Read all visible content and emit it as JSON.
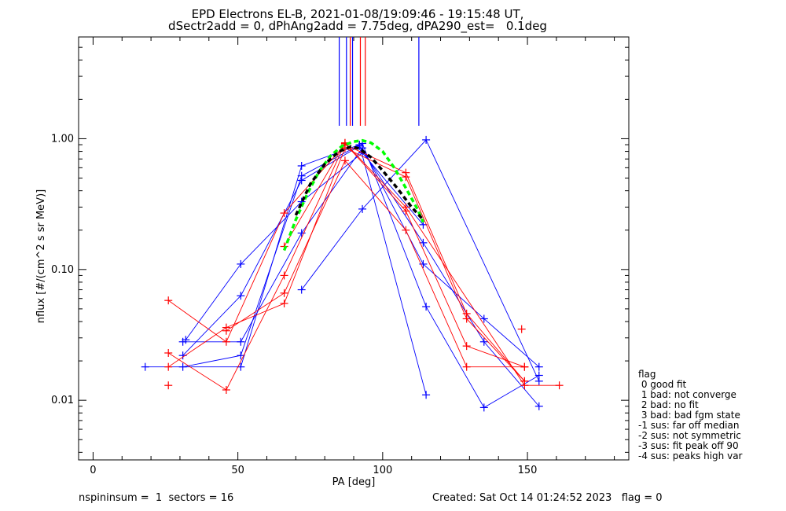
{
  "title": {
    "line1": "EPD Electrons EL-B, 2021-01-08/19:09:46 - 19:15:48 UT,",
    "line2": "dSectr2add = 0, dPhAng2add = 7.75deg, dPA290_est=   0.1deg"
  },
  "footer": {
    "left": "nspininsum =  1  sectors = 16",
    "right": "Created: Sat Oct 14 01:24:52 2023   flag = 0"
  },
  "flag_legend": {
    "title": "flag",
    "items": [
      " 0 good fit",
      " 1 bad: not converge",
      " 2 bad: no fit",
      " 3 bad: bad fgm state",
      "-1 sus: far off median",
      "-2 sus: not symmetric",
      "-3 sus: fit peak off 90",
      "-4 sus: peaks high var"
    ]
  },
  "colors": {
    "blue": "#0000ff",
    "red": "#ff0000",
    "green_fit": "#00ff00",
    "black_fit": "#000000"
  },
  "chart_data": {
    "type": "line",
    "xlabel": "PA [deg]",
    "ylabel": "nflux [#/(cm^2 s sr MeV)]",
    "xlim": [
      -5,
      185
    ],
    "ylim": [
      0.0035,
      6.0
    ],
    "yscale": "log",
    "x_ticks": [
      0,
      50,
      100,
      150
    ],
    "y_ticks": [
      0.01,
      0.1,
      1.0
    ],
    "y_tick_labels": [
      "0.01",
      "0.10",
      "1.00"
    ],
    "grid": false,
    "peak_markers": [
      {
        "x": 85.0,
        "color": "blue"
      },
      {
        "x": 87.5,
        "color": "blue"
      },
      {
        "x": 88.8,
        "color": "red"
      },
      {
        "x": 89.6,
        "color": "blue"
      },
      {
        "x": 92.3,
        "color": "red"
      },
      {
        "x": 94.0,
        "color": "red"
      },
      {
        "x": 112.5,
        "color": "blue"
      }
    ],
    "series": [
      {
        "color": "blue",
        "points": [
          [
            18,
            0.018
          ],
          [
            51,
            0.018
          ],
          [
            72,
            0.62
          ],
          [
            92,
            0.9
          ],
          [
            115,
            0.011
          ]
        ]
      },
      {
        "color": "blue",
        "points": [
          [
            31,
            0.018
          ],
          [
            51,
            0.022
          ],
          [
            72,
            0.52
          ],
          [
            93,
            0.92
          ],
          [
            115,
            0.052
          ],
          [
            135,
            0.0088
          ],
          [
            154,
            0.0155
          ]
        ]
      },
      {
        "color": "blue",
        "points": [
          [
            31,
            0.022
          ],
          [
            51,
            0.063
          ],
          [
            72,
            0.48
          ],
          [
            92,
            0.88
          ],
          [
            114,
            0.16
          ],
          [
            135,
            0.028
          ],
          [
            154,
            0.009
          ]
        ]
      },
      {
        "color": "blue",
        "points": [
          [
            31,
            0.028
          ],
          [
            51,
            0.028
          ],
          [
            72,
            0.19
          ],
          [
            93,
            0.85
          ],
          [
            114,
            0.11
          ],
          [
            135,
            0.042
          ],
          [
            154,
            0.018
          ]
        ]
      },
      {
        "color": "blue",
        "points": [
          [
            32,
            0.029
          ],
          [
            51,
            0.11
          ],
          [
            72,
            0.33
          ],
          [
            93,
            0.78
          ],
          [
            114,
            0.22
          ]
        ]
      },
      {
        "color": "blue",
        "points": [
          [
            72,
            0.07
          ],
          [
            93,
            0.29
          ],
          [
            115,
            0.98
          ],
          [
            154,
            0.014
          ]
        ]
      },
      {
        "color": "red",
        "points": [
          [
            26,
            0.058
          ],
          [
            46,
            0.028
          ],
          [
            66,
            0.27
          ],
          [
            87,
            0.9
          ],
          [
            108,
            0.55
          ],
          [
            129,
            0.046
          ],
          [
            149,
            0.014
          ]
        ]
      },
      {
        "color": "red",
        "points": [
          [
            26,
            0.018
          ],
          [
            46,
            0.036
          ],
          [
            66,
            0.055
          ],
          [
            87,
            0.85
          ],
          [
            108,
            0.51
          ],
          [
            129,
            0.042
          ],
          [
            149,
            0.014
          ]
        ]
      },
      {
        "color": "red",
        "points": [
          [
            26,
            0.023
          ],
          [
            46,
            0.012
          ],
          [
            66,
            0.09
          ],
          [
            87,
            0.92
          ],
          [
            108,
            0.28
          ],
          [
            129,
            0.026
          ],
          [
            149,
            0.018
          ]
        ]
      },
      {
        "color": "red",
        "points": [
          [
            46,
            0.034
          ],
          [
            66,
            0.066
          ],
          [
            87,
            0.68
          ],
          [
            108,
            0.2
          ],
          [
            129,
            0.018
          ],
          [
            149,
            0.018
          ]
        ]
      },
      {
        "color": "red",
        "points": [
          [
            66,
            0.15
          ],
          [
            87,
            0.93
          ],
          [
            108,
            0.3
          ],
          [
            149,
            0.013
          ],
          [
            161,
            0.013
          ]
        ]
      }
    ],
    "extra_points": [
      {
        "color": "red",
        "x": 26,
        "y": 0.013
      },
      {
        "color": "red",
        "x": 148,
        "y": 0.035
      }
    ],
    "fit_curves": [
      {
        "color": "green_fit",
        "style": "dashed",
        "points": [
          [
            66,
            0.14
          ],
          [
            70,
            0.24
          ],
          [
            74,
            0.38
          ],
          [
            78,
            0.56
          ],
          [
            82,
            0.74
          ],
          [
            86,
            0.88
          ],
          [
            90,
            0.95
          ],
          [
            93,
            0.97
          ],
          [
            96,
            0.93
          ],
          [
            100,
            0.8
          ],
          [
            104,
            0.6
          ],
          [
            108,
            0.42
          ],
          [
            112,
            0.29
          ],
          [
            114,
            0.23
          ]
        ]
      },
      {
        "color": "black_fit",
        "style": "dashed",
        "points": [
          [
            70,
            0.26
          ],
          [
            75,
            0.45
          ],
          [
            80,
            0.64
          ],
          [
            85,
            0.8
          ],
          [
            89,
            0.87
          ],
          [
            92,
            0.84
          ],
          [
            96,
            0.72
          ],
          [
            100,
            0.57
          ],
          [
            105,
            0.42
          ],
          [
            110,
            0.3
          ],
          [
            114,
            0.24
          ]
        ]
      }
    ]
  }
}
